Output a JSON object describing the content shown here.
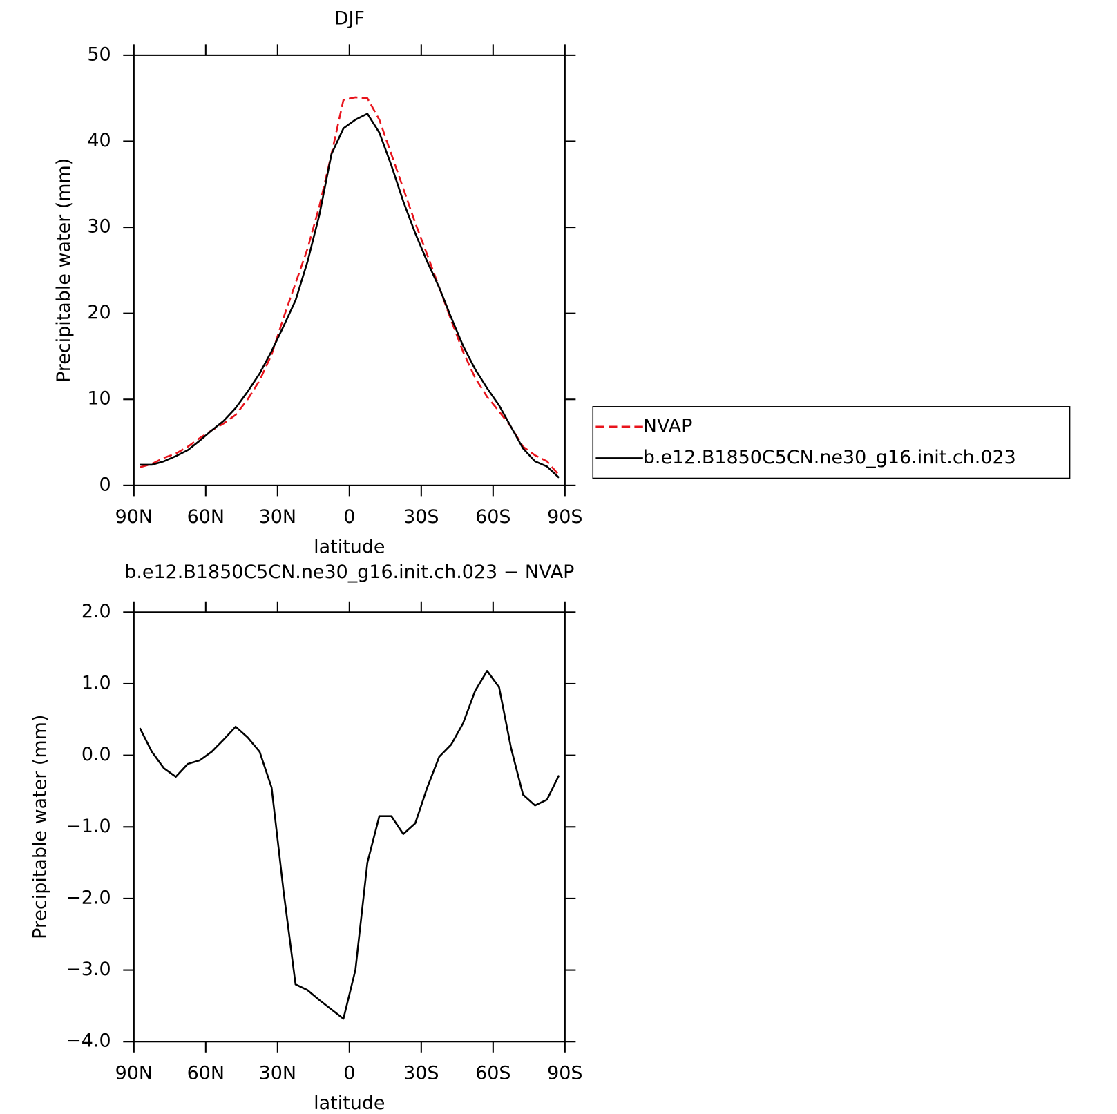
{
  "chart_data": [
    {
      "type": "line",
      "title": "DJF",
      "xlabel": "latitude",
      "ylabel": "Precipitable water (mm)",
      "x": [
        87.5,
        82.5,
        77.5,
        72.5,
        67.5,
        62.5,
        57.5,
        52.5,
        47.5,
        42.5,
        37.5,
        32.5,
        27.5,
        22.5,
        17.5,
        12.5,
        7.5,
        2.5,
        -2.5,
        -7.5,
        -12.5,
        -17.5,
        -22.5,
        -27.5,
        -32.5,
        -37.5,
        -42.5,
        -47.5,
        -52.5,
        -57.5,
        -62.5,
        -67.5,
        -72.5,
        -77.5,
        -82.5,
        -87.5
      ],
      "xlim": [
        90,
        -90
      ],
      "xticks": [
        {
          "value": 90,
          "label": "90N"
        },
        {
          "value": 60,
          "label": "60N"
        },
        {
          "value": 30,
          "label": "30N"
        },
        0,
        {
          "value": -30,
          "label": "30S"
        },
        {
          "value": -60,
          "label": "60S"
        },
        {
          "value": -90,
          "label": "90S"
        }
      ],
      "ylim": [
        0,
        50
      ],
      "yticks": [
        0,
        10,
        20,
        30,
        40,
        50
      ],
      "legend": "right",
      "series": [
        {
          "name": "NVAP",
          "color": "#e8141c",
          "line_style": "dashed",
          "values": [
            2.1,
            2.5,
            3.2,
            3.7,
            4.5,
            5.5,
            6.4,
            7.2,
            8.2,
            10.0,
            12.2,
            15.2,
            19.5,
            23.5,
            27.5,
            32.5,
            38.5,
            44.8,
            45.1,
            45.0,
            42.5,
            38.5,
            34.5,
            30.5,
            26.8,
            23.0,
            19.2,
            15.5,
            12.5,
            10.3,
            8.6,
            6.8,
            4.5,
            3.5,
            2.8,
            1.2
          ]
        },
        {
          "name": "b.e12.B1850C5CN.ne30_g16.init.ch.023",
          "color": "#000000",
          "line_style": "solid",
          "values": [
            2.4,
            2.4,
            2.8,
            3.4,
            4.1,
            5.2,
            6.4,
            7.5,
            9.0,
            10.9,
            13.0,
            15.6,
            18.5,
            21.5,
            26.0,
            31.5,
            38.5,
            41.5,
            42.5,
            43.2,
            41.0,
            37.2,
            33.0,
            29.3,
            26.0,
            23.0,
            19.5,
            16.2,
            13.5,
            11.3,
            9.3,
            6.8,
            4.3,
            2.8,
            2.2,
            0.9
          ]
        }
      ]
    },
    {
      "type": "line",
      "title": "b.e12.B1850C5CN.ne30_g16.init.ch.023 − NVAP",
      "xlabel": "latitude",
      "ylabel": "Precipitable water (mm)",
      "x": [
        87.5,
        82.5,
        77.5,
        72.5,
        67.5,
        62.5,
        57.5,
        52.5,
        47.5,
        42.5,
        37.5,
        32.5,
        27.5,
        22.5,
        17.5,
        12.5,
        7.5,
        2.5,
        -2.5,
        -7.5,
        -12.5,
        -17.5,
        -22.5,
        -27.5,
        -32.5,
        -37.5,
        -42.5,
        -47.5,
        -52.5,
        -57.5,
        -62.5,
        -67.5,
        -72.5,
        -77.5,
        -82.5,
        -87.5
      ],
      "xlim": [
        90,
        -90
      ],
      "xticks": [
        {
          "value": 90,
          "label": "90N"
        },
        {
          "value": 60,
          "label": "60N"
        },
        {
          "value": 30,
          "label": "30N"
        },
        0,
        {
          "value": -30,
          "label": "30S"
        },
        {
          "value": -60,
          "label": "60S"
        },
        {
          "value": -90,
          "label": "90S"
        }
      ],
      "ylim": [
        -4,
        2
      ],
      "yticks": [
        {
          "value": -4,
          "label": "−4.0"
        },
        {
          "value": -3,
          "label": "−3.0"
        },
        {
          "value": -2,
          "label": "−2.0"
        },
        {
          "value": -1,
          "label": "−1.0"
        },
        {
          "value": 0,
          "label": "0.0"
        },
        {
          "value": 1,
          "label": "1.0"
        },
        {
          "value": 2,
          "label": "2.0"
        }
      ],
      "series": [
        {
          "color": "#000000",
          "line_style": "solid",
          "values": [
            0.38,
            0.05,
            -0.18,
            -0.3,
            -0.12,
            -0.07,
            0.05,
            0.22,
            0.4,
            0.25,
            0.05,
            -0.45,
            -1.9,
            -3.2,
            -3.28,
            -3.42,
            -3.55,
            -3.68,
            -3.0,
            -1.5,
            -0.85,
            -0.85,
            -1.1,
            -0.95,
            -0.45,
            -0.02,
            0.15,
            0.45,
            0.9,
            1.18,
            0.95,
            0.1,
            -0.55,
            -0.7,
            -0.62,
            -0.28
          ]
        }
      ]
    }
  ]
}
